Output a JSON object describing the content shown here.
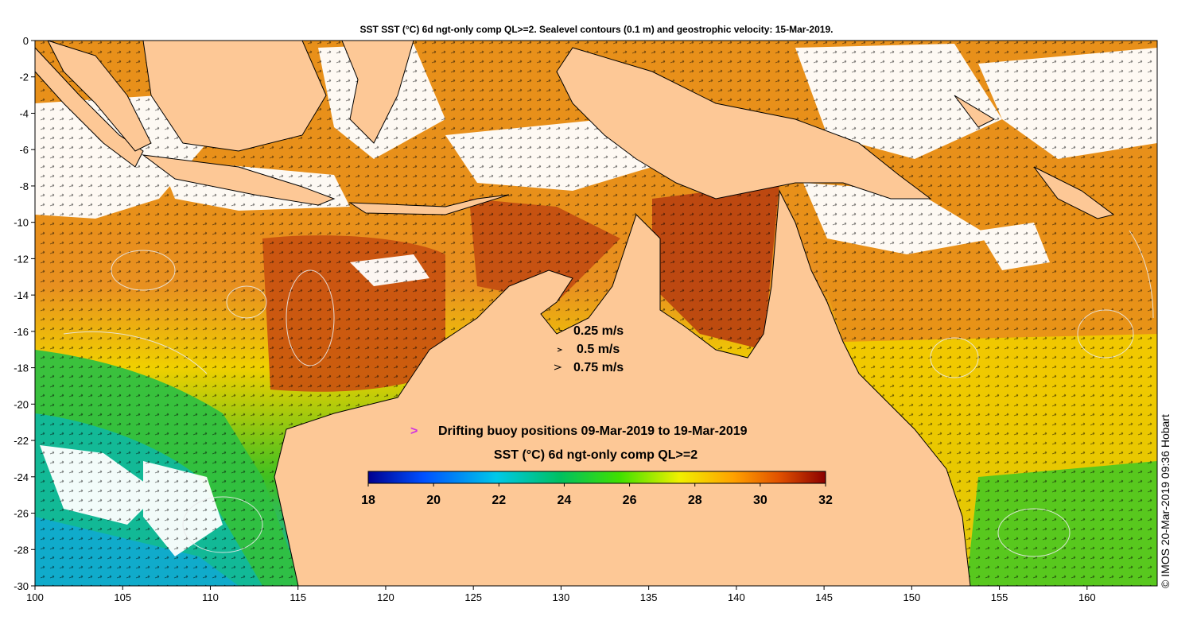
{
  "title": "SST SST (°C) 6d ngt-only comp QL>=2. Sealevel contours (0.1 m) and geostrophic velocity: 15-Mar-2019.",
  "axes": {
    "x_ticks": [
      "100",
      "105",
      "110",
      "115",
      "120",
      "125",
      "130",
      "135",
      "140",
      "145",
      "150",
      "155",
      "160"
    ],
    "y_ticks": [
      "0",
      "-2",
      "-4",
      "-6",
      "-8",
      "-10",
      "-12",
      "-14",
      "-16",
      "-18",
      "-20",
      "-22",
      "-24",
      "-26",
      "-28",
      "-30"
    ],
    "lon_range": [
      100,
      164
    ],
    "lat_range": [
      -30,
      0
    ]
  },
  "velocity_legend": {
    "items": [
      "0.25 m/s",
      "0.5 m/s",
      "0.75 m/s"
    ],
    "values": [
      0.25,
      0.5,
      0.75
    ]
  },
  "buoy": {
    "symbol": ">",
    "label": "Drifting buoy positions 09-Mar-2019 to 19-Mar-2019",
    "color": "#d030e0"
  },
  "colorbar": {
    "title": "SST (°C) 6d ngt-only comp QL>=2",
    "ticks": [
      "18",
      "20",
      "22",
      "24",
      "26",
      "28",
      "30",
      "32"
    ],
    "range": [
      18,
      32
    ],
    "stops": [
      "#00008f",
      "#0050ff",
      "#00c8e8",
      "#00c060",
      "#40e000",
      "#f0f000",
      "#ffa000",
      "#e05000",
      "#8b0000"
    ]
  },
  "credit": "© IMOS 20-Mar-2019 09:36 Hobart",
  "colors": {
    "land": "#fdc896",
    "cloud": "#ffffff",
    "coast": "#000000",
    "contour": "#e8e8e8"
  }
}
